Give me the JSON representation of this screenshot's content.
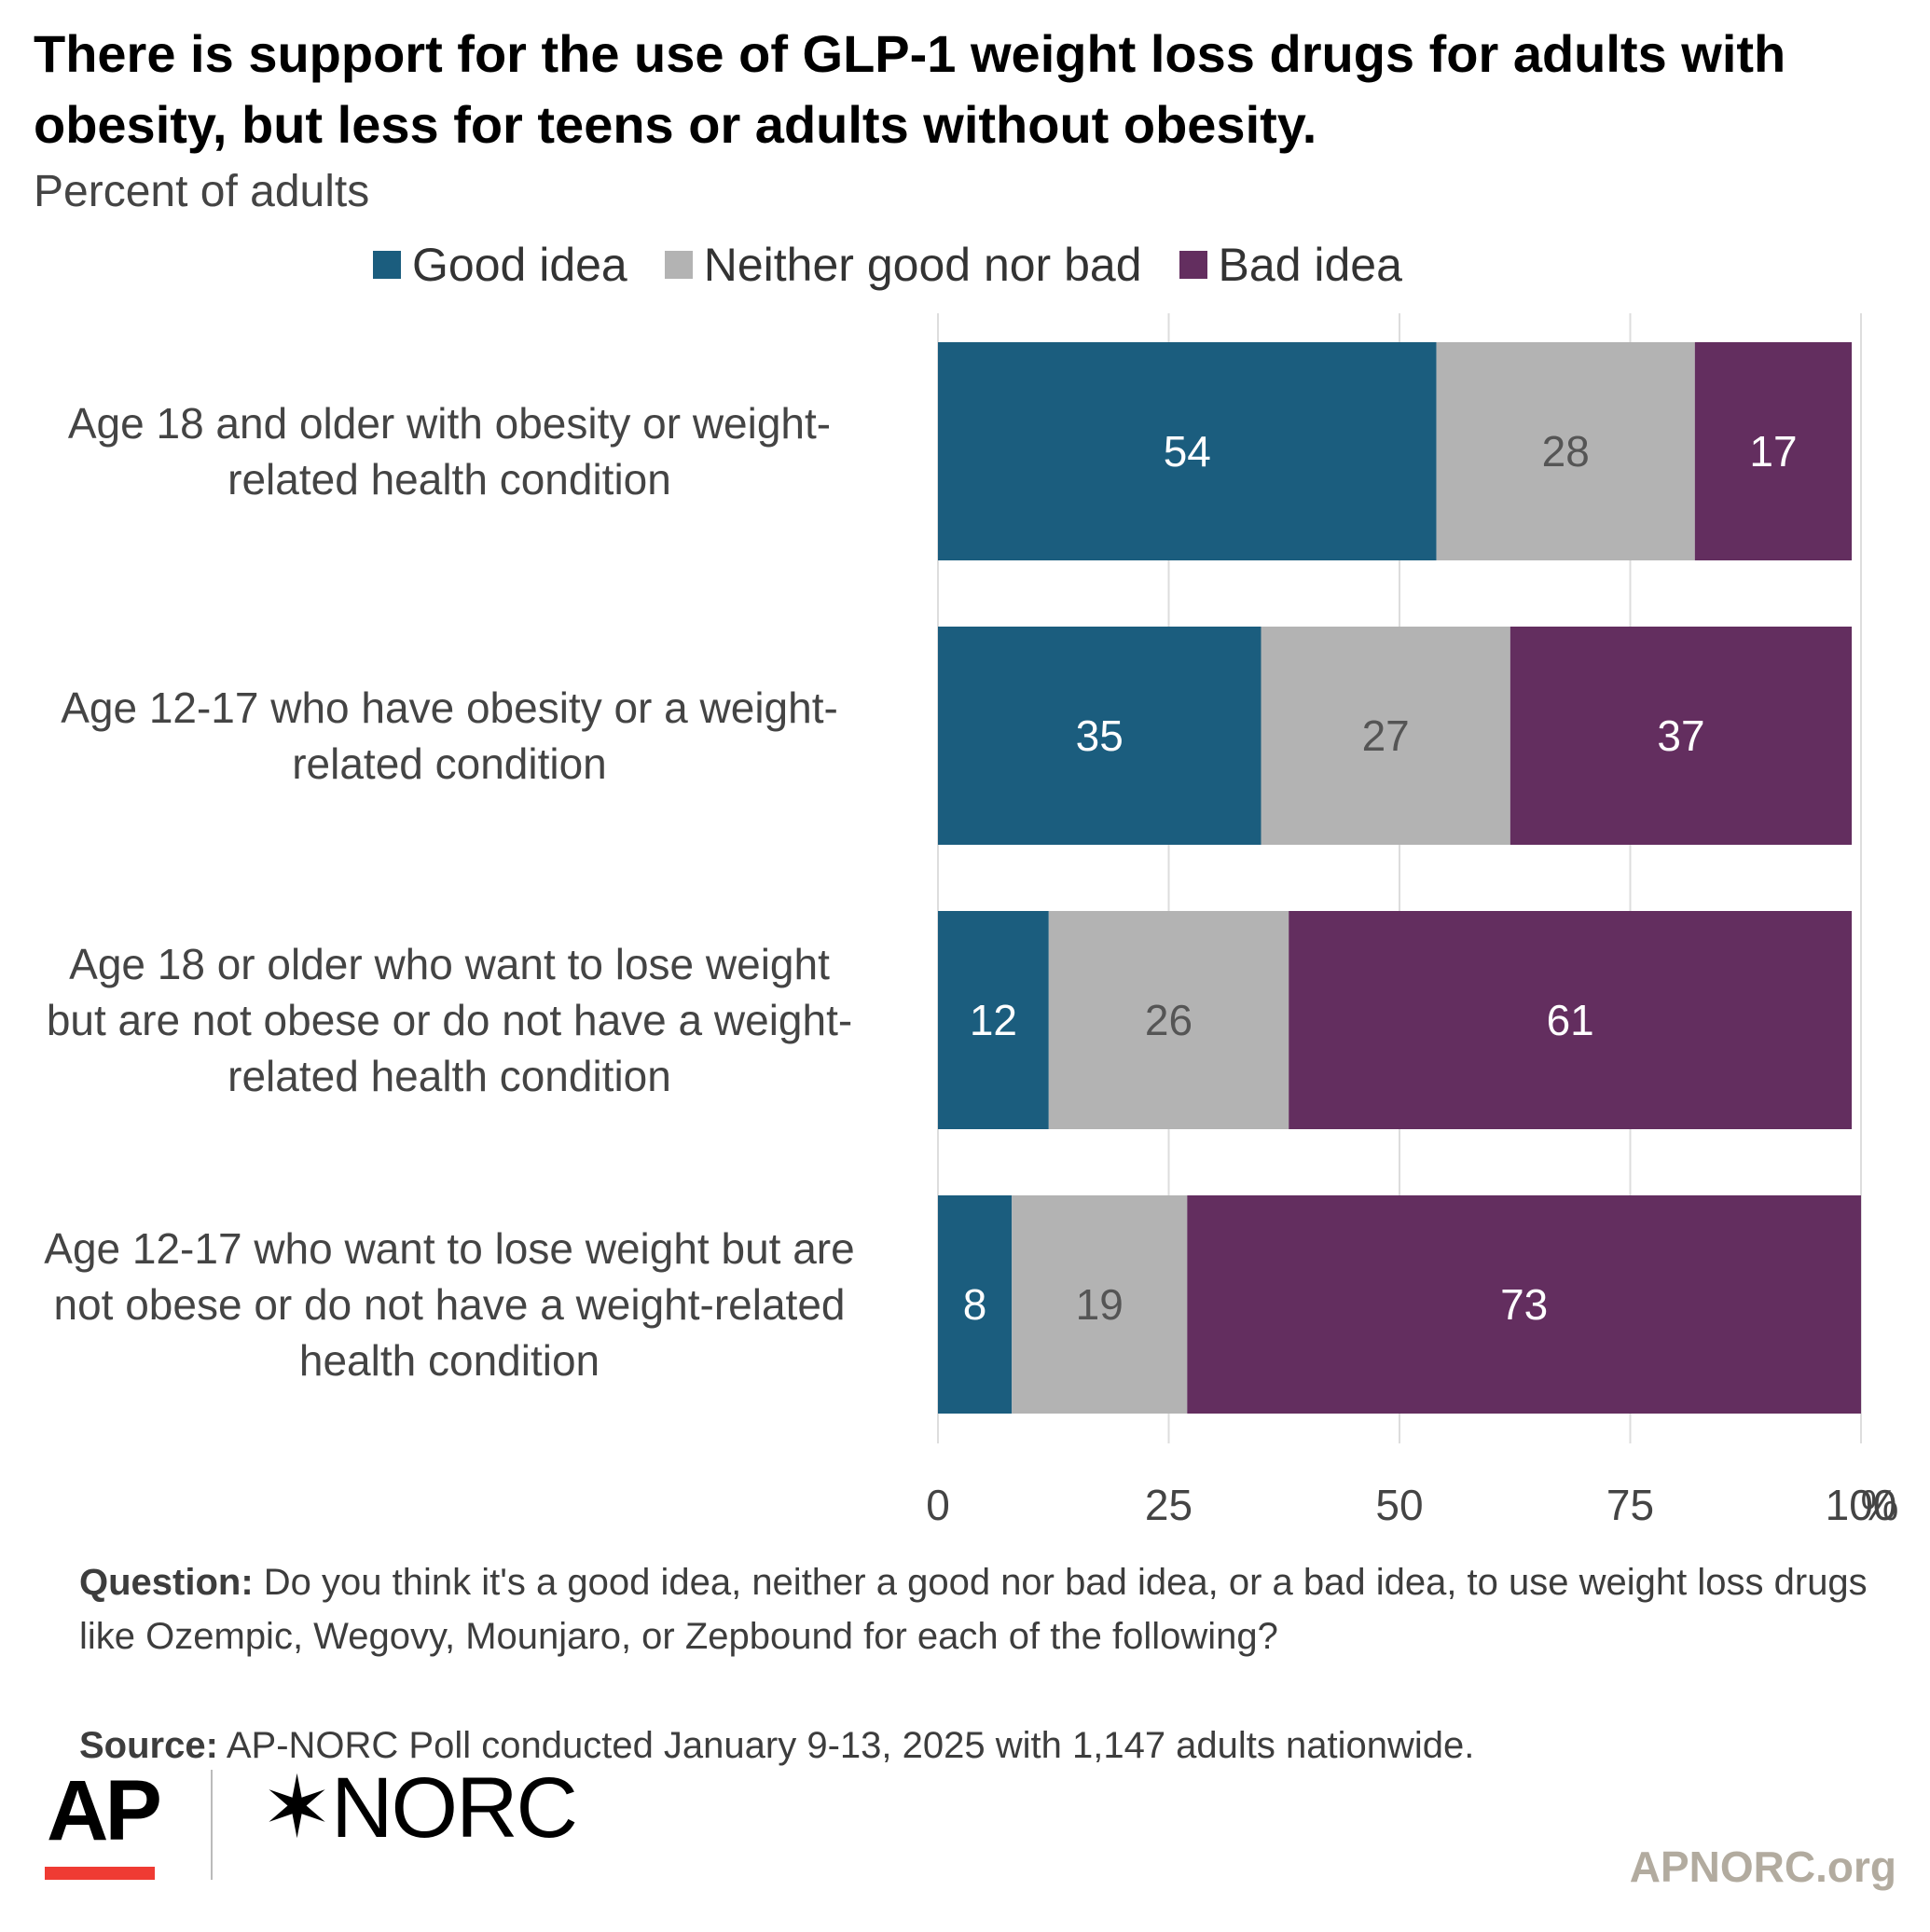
{
  "title": "There is support for the use of GLP-1 weight loss drugs for adults with obesity, but less for teens or adults without obesity.",
  "subtitle": "Percent of adults",
  "question_label": "Question:",
  "question_text": "Do you think it's a good idea, neither a good nor bad idea, or a bad idea, to use weight loss drugs like Ozempic, Wegovy, Mounjaro, or Zepbound for each of the following?",
  "source_label": "Source:",
  "source_text": "AP-NORC Poll conducted January 9-13, 2025 with 1,147 adults nationwide.",
  "logo_ap": "AP",
  "logo_norc": "NORC",
  "site": "APNORC.org",
  "colors": {
    "good": "#1b5d7e",
    "neither": "#b3b3b3",
    "bad": "#632e5f",
    "ap_red": "#ef3b33"
  },
  "chart_data": {
    "type": "bar",
    "orientation": "horizontal",
    "stacked": true,
    "categories": [
      "Age 18 and older with obesity or weight-related health condition",
      "Age 12-17 who have obesity or a weight-related condition",
      "Age 18 or older who want to lose weight but are not obese or do not have a weight-related health condition",
      "Age 12-17 who want to lose weight but are not obese or do not have a weight-related health condition"
    ],
    "series": [
      {
        "name": "Good idea",
        "values": [
          54,
          35,
          12,
          8
        ]
      },
      {
        "name": "Neither good nor bad",
        "values": [
          28,
          27,
          26,
          19
        ]
      },
      {
        "name": "Bad idea",
        "values": [
          17,
          37,
          61,
          73
        ]
      }
    ],
    "xlim": [
      0,
      100
    ],
    "xticks": [
      "0",
      "25",
      "50",
      "75",
      "100"
    ],
    "x_unit": "%",
    "grid": true,
    "legend": "top"
  }
}
